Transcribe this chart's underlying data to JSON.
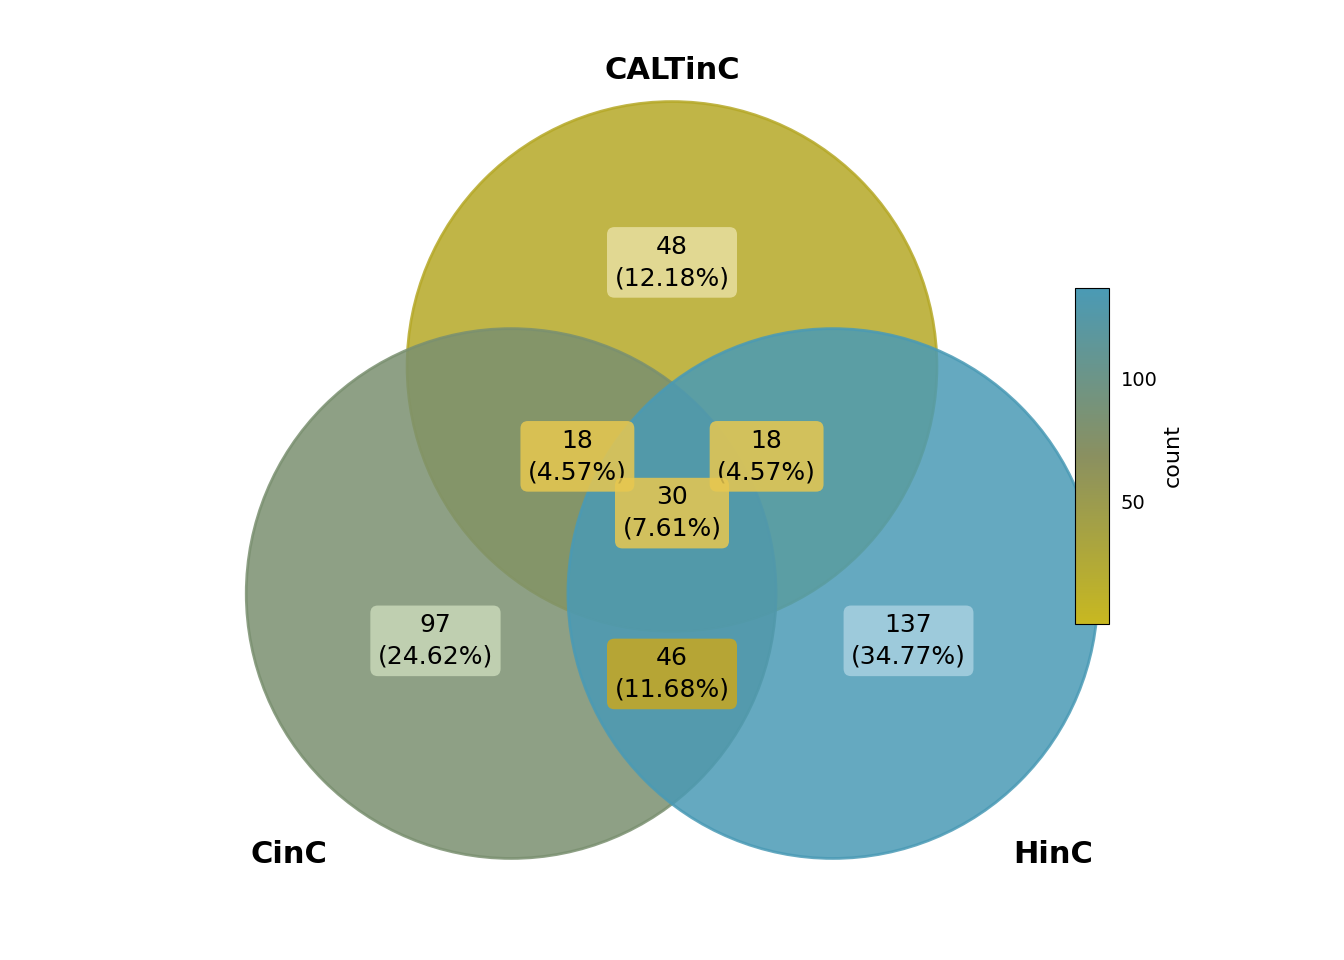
{
  "title_top": "CALTinC",
  "title_left": "CinC",
  "title_right": "HinC",
  "labels": {
    "top_only": {
      "count": 48,
      "pct": "12.18%"
    },
    "left_only": {
      "count": 97,
      "pct": "24.62%"
    },
    "right_only": {
      "count": 137,
      "pct": "34.77%"
    },
    "top_left": {
      "count": 18,
      "pct": "4.57%"
    },
    "top_right": {
      "count": 18,
      "pct": "4.57%"
    },
    "bottom": {
      "count": 46,
      "pct": "11.68%"
    },
    "center": {
      "count": 30,
      "pct": "7.61%"
    }
  },
  "circle_colors": {
    "top": "#b5a827",
    "left": "#7a9070",
    "right": "#4a9ab5"
  },
  "circle_alpha": 0.85,
  "edge_color": "#aaaaaa",
  "background_color": "#ffffff",
  "colorbar_label": "count",
  "colorbar_ticks": [
    50,
    100
  ],
  "colorbar_colors": [
    "#c8b820",
    "#4a9ab5"
  ],
  "label_box_colors": {
    "top_only": "#e8dfa0",
    "left_only": "#c8d8b8",
    "right_only": "#a8d0e0",
    "top_left": "#e8c850",
    "top_right": "#e8c850",
    "bottom": "#c8a820",
    "center": "#e8c850"
  },
  "font_size_labels": 16,
  "font_size_title": 22,
  "font_size_count": 18
}
